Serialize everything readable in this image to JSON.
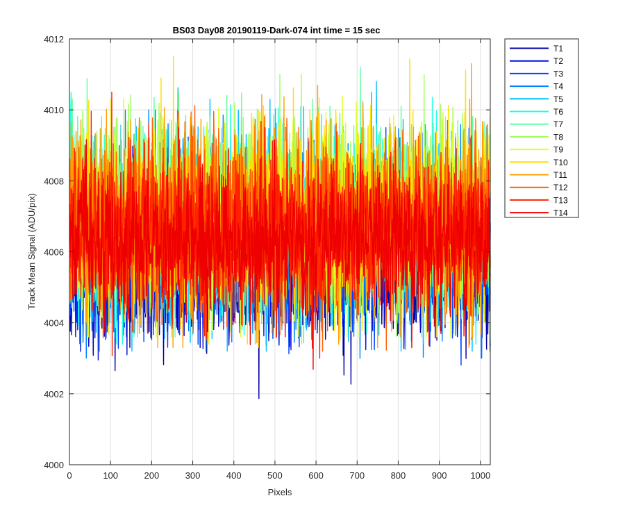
{
  "chart_data": {
    "type": "line",
    "title": "BS03 Day08 20190119-Dark-074 int time = 15 sec",
    "xlabel": "Pixels",
    "ylabel": "Track Mean Signal (ADU/pix)",
    "xlim": [
      0,
      1024
    ],
    "ylim": [
      4000,
      4012
    ],
    "xticks": [
      0,
      100,
      200,
      300,
      400,
      500,
      600,
      700,
      800,
      900,
      1000
    ],
    "yticks": [
      4000,
      4002,
      4004,
      4006,
      4008,
      4010,
      4012
    ],
    "grid": true,
    "legend_position": "outside-right",
    "points_per_series": 1024,
    "series": [
      {
        "name": "T1",
        "color": "#0000a6",
        "mean": 4005.5,
        "spread": 1.0,
        "min": 4001.2,
        "max": 4009.2
      },
      {
        "name": "T2",
        "color": "#0010d9",
        "mean": 4005.7,
        "spread": 1.0,
        "min": 4002.0,
        "max": 4009.0
      },
      {
        "name": "T3",
        "color": "#0040ff",
        "mean": 4006.0,
        "spread": 1.1,
        "min": 4002.5,
        "max": 4009.5
      },
      {
        "name": "T4",
        "color": "#0080ff",
        "mean": 4006.3,
        "spread": 1.2,
        "min": 4003.0,
        "max": 4010.0
      },
      {
        "name": "T5",
        "color": "#00c0ff",
        "mean": 4006.6,
        "spread": 1.3,
        "min": 4003.2,
        "max": 4010.8
      },
      {
        "name": "T6",
        "color": "#20ffe0",
        "mean": 4006.8,
        "spread": 1.3,
        "min": 4003.4,
        "max": 4010.5
      },
      {
        "name": "T7",
        "color": "#60ffa0",
        "mean": 4007.0,
        "spread": 1.3,
        "min": 4003.6,
        "max": 4011.2
      },
      {
        "name": "T8",
        "color": "#a0ff60",
        "mean": 4007.1,
        "spread": 1.3,
        "min": 4003.6,
        "max": 4011.0
      },
      {
        "name": "T9",
        "color": "#e0ff20",
        "mean": 4007.0,
        "spread": 1.3,
        "min": 4003.6,
        "max": 4010.8
      },
      {
        "name": "T10",
        "color": "#ffe000",
        "mean": 4006.9,
        "spread": 1.3,
        "min": 4003.4,
        "max": 4011.5
      },
      {
        "name": "T11",
        "color": "#ffa000",
        "mean": 4006.9,
        "spread": 1.3,
        "min": 4003.3,
        "max": 4011.3
      },
      {
        "name": "T12",
        "color": "#ff6000",
        "mean": 4006.8,
        "spread": 1.2,
        "min": 4003.2,
        "max": 4010.7
      },
      {
        "name": "T13",
        "color": "#ff2000",
        "mean": 4006.6,
        "spread": 1.1,
        "min": 4003.0,
        "max": 4010.5
      },
      {
        "name": "T14",
        "color": "#ee0000",
        "mean": 4006.3,
        "spread": 1.0,
        "min": 4002.6,
        "max": 4009.5
      }
    ]
  }
}
